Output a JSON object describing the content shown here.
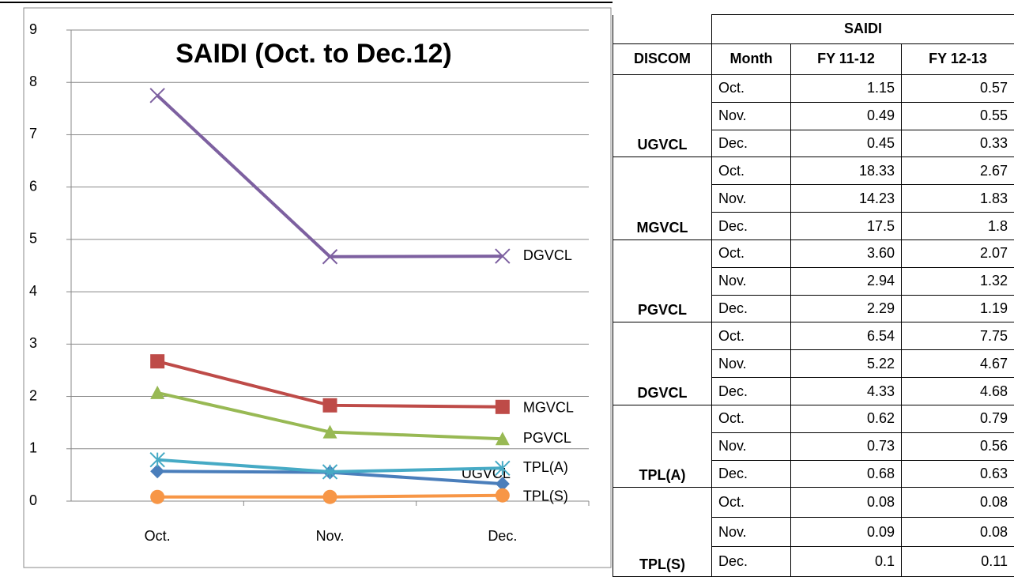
{
  "chart_data": {
    "type": "line",
    "title": "SAIDI (Oct. to Dec.12)",
    "categories": [
      "Oct.",
      "Nov.",
      "Dec."
    ],
    "series": [
      {
        "name": "UGVCL",
        "color": "#4a7ebb",
        "marker": "diamond",
        "values": [
          0.57,
          0.55,
          0.33
        ]
      },
      {
        "name": "MGVCL",
        "color": "#be4b48",
        "marker": "square",
        "values": [
          2.67,
          1.83,
          1.8
        ]
      },
      {
        "name": "PGVCL",
        "color": "#98b954",
        "marker": "triangle",
        "values": [
          2.07,
          1.32,
          1.19
        ]
      },
      {
        "name": "DGVCL",
        "color": "#7d60a0",
        "marker": "x",
        "values": [
          7.75,
          4.67,
          4.68
        ]
      },
      {
        "name": "TPL(A)",
        "color": "#46aac5",
        "marker": "star",
        "values": [
          0.79,
          0.56,
          0.63
        ]
      },
      {
        "name": "TPL(S)",
        "color": "#f79646",
        "marker": "circle",
        "values": [
          0.08,
          0.08,
          0.11
        ]
      }
    ],
    "ylim": [
      0,
      9
    ],
    "yticks": [
      0,
      1,
      2,
      3,
      4,
      5,
      6,
      7,
      8,
      9
    ],
    "grid": true
  },
  "table": {
    "group_header": "SAIDI",
    "header": [
      "DISCOM",
      "Month",
      "FY 11-12",
      "FY 12-13"
    ],
    "groups": [
      {
        "name": "UGVCL",
        "rows": [
          [
            "Oct.",
            "1.15",
            "0.57"
          ],
          [
            "Nov.",
            "0.49",
            "0.55"
          ],
          [
            "Dec.",
            "0.45",
            "0.33"
          ]
        ]
      },
      {
        "name": "MGVCL",
        "rows": [
          [
            "Oct.",
            "18.33",
            "2.67"
          ],
          [
            "Nov.",
            "14.23",
            "1.83"
          ],
          [
            "Dec.",
            "17.5",
            "1.8"
          ]
        ]
      },
      {
        "name": "PGVCL",
        "rows": [
          [
            "Oct.",
            "3.60",
            "2.07"
          ],
          [
            "Nov.",
            "2.94",
            "1.32"
          ],
          [
            "Dec.",
            "2.29",
            "1.19"
          ]
        ]
      },
      {
        "name": "DGVCL",
        "rows": [
          [
            "Oct.",
            "6.54",
            "7.75"
          ],
          [
            "Nov.",
            "5.22",
            "4.67"
          ],
          [
            "Dec.",
            "4.33",
            "4.68"
          ]
        ]
      },
      {
        "name": "TPL(A)",
        "rows": [
          [
            "Oct.",
            "0.62",
            "0.79"
          ],
          [
            "Nov.",
            "0.73",
            "0.56"
          ],
          [
            "Dec.",
            "0.68",
            "0.63"
          ]
        ]
      },
      {
        "name": "TPL(S)",
        "rows": [
          [
            "Oct.",
            "0.08",
            "0.08"
          ],
          [
            "Nov.",
            "0.09",
            "0.08"
          ],
          [
            "Dec.",
            "0.1",
            "0.11"
          ]
        ]
      }
    ]
  }
}
